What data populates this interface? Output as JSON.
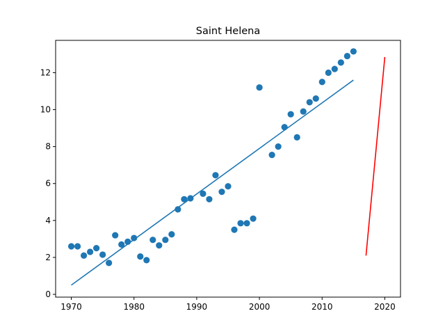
{
  "chart_data": {
    "type": "scatter",
    "title": "Saint Helena",
    "xlabel": "",
    "ylabel": "",
    "xlim": [
      1967.5,
      2022.5
    ],
    "ylim": [
      -0.15,
      13.75
    ],
    "x_ticks": [
      1970,
      1980,
      1990,
      2000,
      2010,
      2020
    ],
    "y_ticks": [
      0,
      2,
      4,
      6,
      8,
      10,
      12
    ],
    "grid": false,
    "legend": "none",
    "series": [
      {
        "kind": "scatter",
        "color": "#1f77b4",
        "points": [
          [
            1970,
            2.6
          ],
          [
            1971,
            2.6
          ],
          [
            1972,
            2.1
          ],
          [
            1973,
            2.3
          ],
          [
            1974,
            2.5
          ],
          [
            1975,
            2.15
          ],
          [
            1976,
            1.7
          ],
          [
            1977,
            3.2
          ],
          [
            1978,
            2.7
          ],
          [
            1979,
            2.85
          ],
          [
            1980,
            3.05
          ],
          [
            1981,
            2.05
          ],
          [
            1982,
            1.85
          ],
          [
            1983,
            2.95
          ],
          [
            1984,
            2.65
          ],
          [
            1985,
            2.95
          ],
          [
            1986,
            3.25
          ],
          [
            1987,
            4.6
          ],
          [
            1988,
            5.15
          ],
          [
            1989,
            5.2
          ],
          [
            1991,
            5.45
          ],
          [
            1992,
            5.15
          ],
          [
            1993,
            6.45
          ],
          [
            1994,
            5.55
          ],
          [
            1995,
            5.85
          ],
          [
            1996,
            3.5
          ],
          [
            1997,
            3.85
          ],
          [
            1998,
            3.85
          ],
          [
            1999,
            4.1
          ],
          [
            2000,
            11.2
          ],
          [
            2002,
            7.55
          ],
          [
            2003,
            8.0
          ],
          [
            2004,
            9.05
          ],
          [
            2005,
            9.75
          ],
          [
            2006,
            8.5
          ],
          [
            2007,
            9.9
          ],
          [
            2008,
            10.4
          ],
          [
            2009,
            10.6
          ],
          [
            2010,
            11.5
          ],
          [
            2011,
            12.0
          ],
          [
            2012,
            12.2
          ],
          [
            2013,
            12.55
          ],
          [
            2014,
            12.9
          ],
          [
            2015,
            13.15
          ]
        ]
      },
      {
        "kind": "line",
        "color": "#1f77b4",
        "points": [
          [
            1970,
            0.5
          ],
          [
            2015,
            11.6
          ]
        ]
      },
      {
        "kind": "line",
        "color": "#ff0000",
        "points": [
          [
            2017,
            2.1
          ],
          [
            2020,
            12.85
          ]
        ]
      }
    ]
  }
}
